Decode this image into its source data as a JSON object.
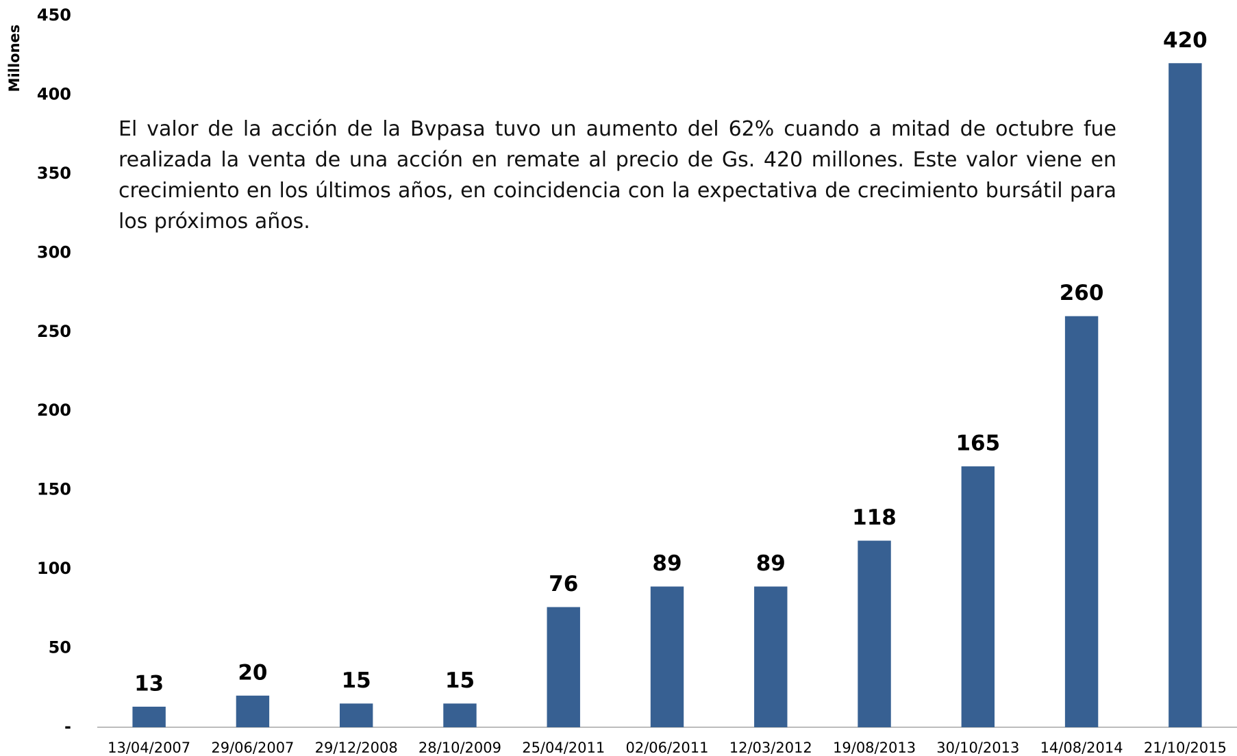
{
  "chart_data": {
    "type": "bar",
    "y_axis_label": "Millones",
    "annotation": "El valor de la acción de la Bvpasa tuvo un aumento del 62% cuando a mitad de octubre fue realizada la venta de una acción en remate al precio de Gs. 420 millones. Este valor viene en crecimiento en los últimos años, en coincidencia con la expectativa de crecimiento bursátil para los próximos años.",
    "categories": [
      "13/04/2007",
      "29/06/2007",
      "29/12/2008",
      "28/10/2009",
      "25/04/2011",
      "02/06/2011",
      "12/03/2012",
      "19/08/2013",
      "30/10/2013",
      "14/08/2014",
      "21/10/2015"
    ],
    "values": [
      13,
      20,
      15,
      15,
      76,
      89,
      89,
      118,
      165,
      260,
      420
    ],
    "color": "#376092",
    "ylim": [
      0,
      450
    ],
    "yticks": [
      {
        "value": 0,
        "label": "-"
      },
      50,
      100,
      150,
      200,
      250,
      300,
      350,
      400,
      450
    ],
    "grid": false
  }
}
